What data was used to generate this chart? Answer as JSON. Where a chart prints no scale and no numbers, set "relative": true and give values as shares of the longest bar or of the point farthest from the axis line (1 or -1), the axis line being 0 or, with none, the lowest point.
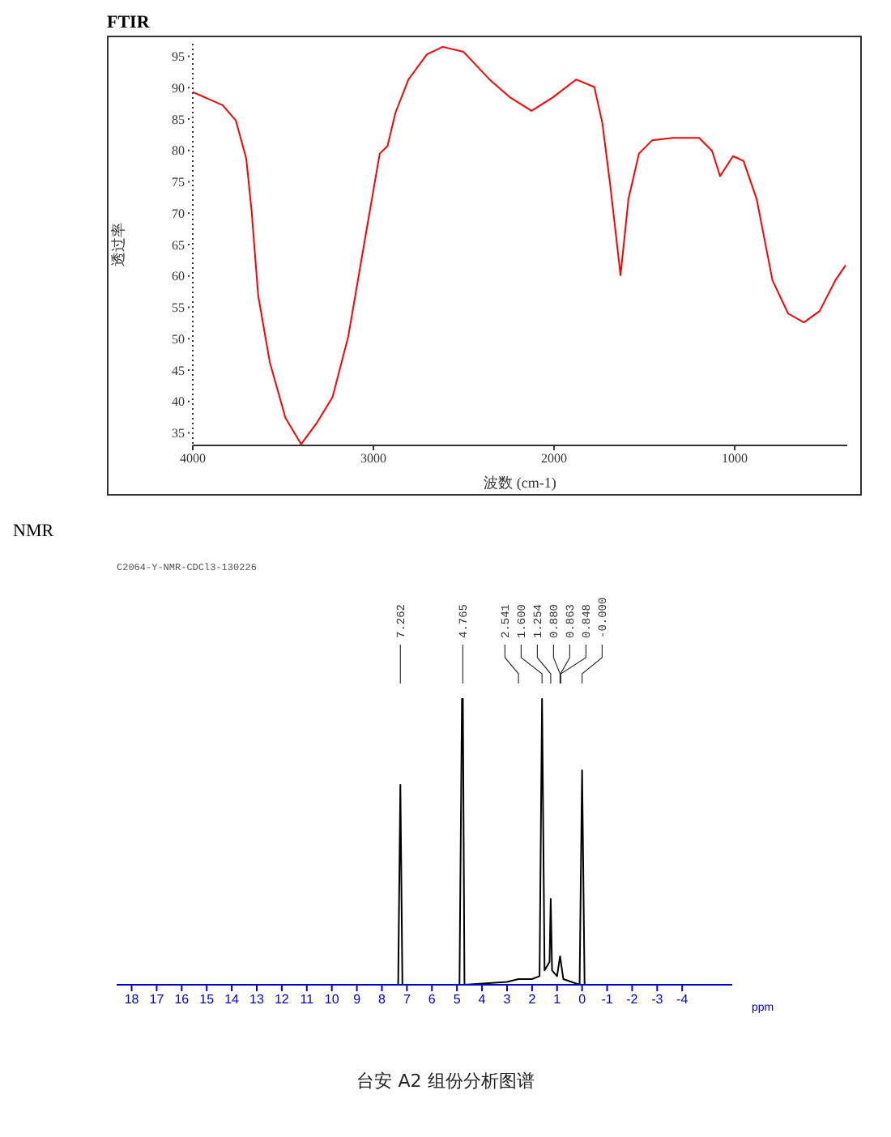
{
  "chart_data": [
    {
      "type": "line",
      "title": "FTIR",
      "xlabel": "波数 (cm-1)",
      "ylabel": "透过率",
      "xlim": [
        4000,
        377
      ],
      "xticks": [
        4000,
        3000,
        2000,
        1000
      ],
      "ylim": [
        33,
        97
      ],
      "yticks": [
        35,
        40,
        45,
        50,
        55,
        60,
        65,
        70,
        75,
        80,
        85,
        90,
        95
      ],
      "grid": false,
      "marker": "none",
      "series": [
        {
          "color": "#ff0000",
          "x": [
            4000,
            3835,
            3762,
            3704,
            3675,
            3638,
            3574,
            3487,
            3400,
            3313,
            3226,
            3139,
            3052,
            2965,
            2922,
            2878,
            2806,
            2704,
            2617,
            2501,
            2357,
            2241,
            2125,
            2009,
            1878,
            1777,
            1733,
            1690,
            1632,
            1588,
            1530,
            1458,
            1342,
            1197,
            1125,
            1081,
            1009,
            951,
            878,
            791,
            704,
            617,
            530,
            443,
            386
          ],
          "values": [
            89.3,
            87.2,
            84.8,
            78.7,
            70.6,
            56.9,
            46.3,
            37.4,
            33.2,
            36.6,
            40.7,
            50.4,
            65.0,
            79.5,
            80.7,
            86.0,
            91.3,
            95.3,
            96.5,
            95.7,
            91.3,
            88.4,
            86.3,
            88.4,
            91.3,
            90.1,
            84.4,
            74.7,
            60.1,
            72.3,
            79.5,
            81.6,
            82.0,
            82.0,
            79.9,
            75.9,
            79.1,
            78.3,
            72.2,
            59.3,
            54.0,
            52.6,
            54.4,
            59.3,
            61.7
          ]
        }
      ]
    },
    {
      "type": "line",
      "title": "NMR",
      "xlabel": "ppm",
      "relative": true,
      "xlim": [
        18.6,
        -6
      ],
      "xticks": [
        18,
        17,
        16,
        15,
        14,
        13,
        12,
        11,
        10,
        9,
        8,
        7,
        6,
        5,
        4,
        3,
        2,
        1,
        0,
        -1,
        -2,
        -3,
        -4
      ],
      "tick_labels": "x",
      "marker": "none",
      "series": [
        {
          "color": "#000000",
          "x": [
            18.6,
            7.35,
            7.262,
            7.18,
            4.9,
            4.8,
            4.765,
            4.7,
            3.0,
            2.541,
            2.0,
            1.7,
            1.6,
            1.5,
            1.3,
            1.254,
            1.2,
            1.0,
            0.88,
            0.863,
            0.848,
            0.75,
            0.1,
            0.0,
            -0.1,
            -6
          ],
          "values": [
            0,
            0,
            0.7,
            0,
            0,
            1.0,
            1.0,
            0,
            0.01,
            0.02,
            0.02,
            0.03,
            1.0,
            0.05,
            0.08,
            0.3,
            0.05,
            0.03,
            0.1,
            0.09,
            0.08,
            0.02,
            0,
            0.75,
            0,
            0
          ]
        }
      ],
      "annotations": [
        "C2064-Y-NMR-CDCl3-130226",
        "台安 A2 组份分析图谱",
        {
          "text": "7.262",
          "x": 7.262
        },
        {
          "text": "4.765",
          "x": 4.765
        },
        {
          "text": "2.541",
          "x": 2.541
        },
        {
          "text": "1.600",
          "x": 1.6
        },
        {
          "text": "1.254",
          "x": 1.254
        },
        {
          "text": "0.880",
          "x": 0.88
        },
        {
          "text": "0.863",
          "x": 0.863
        },
        {
          "text": "0.848",
          "x": 0.848
        },
        {
          "text": "-0.000",
          "x": 0.0
        }
      ]
    }
  ]
}
